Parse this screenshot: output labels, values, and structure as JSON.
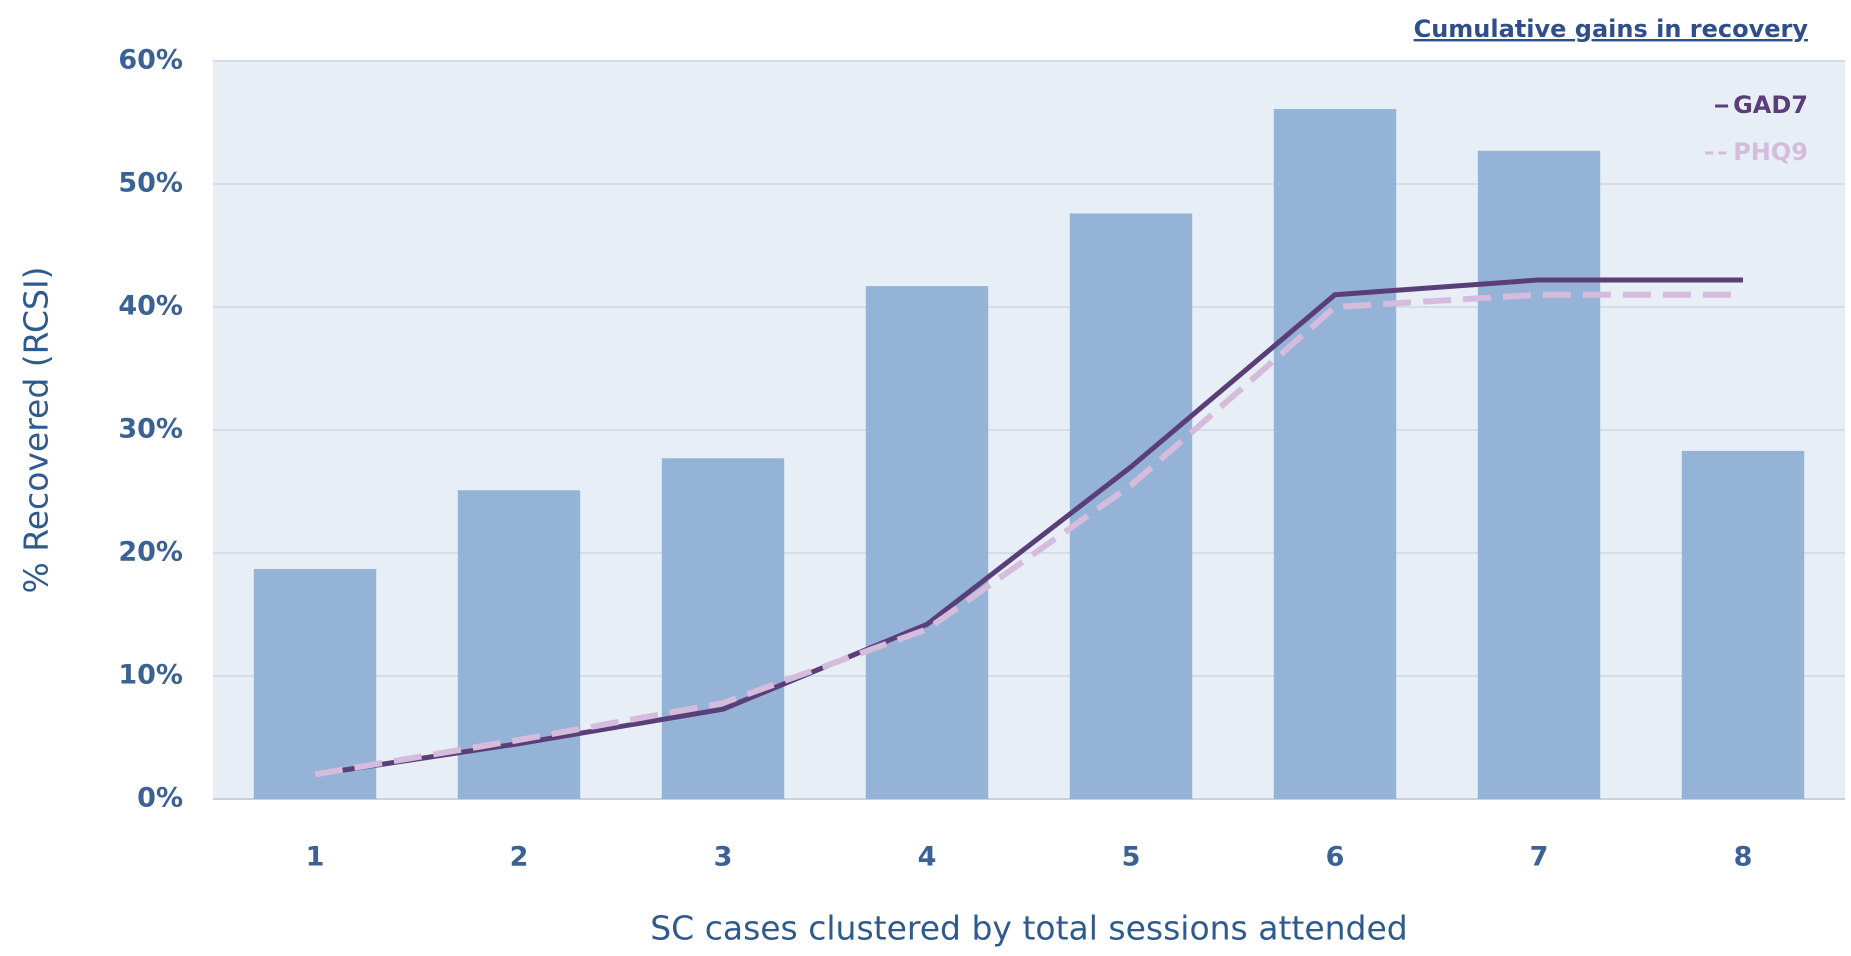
{
  "chart_data": {
    "type": "bar",
    "title": "Cumulative gains in recovery",
    "x_label": "SC cases clustered by total sessions attended",
    "y_label": "% Recovered (RCSI)",
    "categories": [
      "1",
      "2",
      "3",
      "4",
      "5",
      "6",
      "7",
      "8"
    ],
    "series": [
      {
        "type": "bar",
        "color": "#94b3d7",
        "values": [
          18.7,
          25.1,
          27.7,
          41.7,
          47.6,
          56.1,
          52.7,
          28.3
        ]
      },
      {
        "type": "line",
        "name": "GAD7",
        "color": "#5a3e78",
        "dashed": false,
        "values": [
          2,
          4.5,
          7.3,
          14.2,
          27,
          41,
          42.2,
          42.2
        ]
      },
      {
        "type": "line",
        "name": "PHQ9",
        "color": "#d6bcdc",
        "dashed": true,
        "values": [
          2,
          4.8,
          7.8,
          13.8,
          25.5,
          40,
          41,
          41
        ]
      }
    ],
    "ylim": [
      0,
      60
    ],
    "yticks": [
      {
        "value": 0,
        "label": "0%"
      },
      {
        "value": 10,
        "label": "10%"
      },
      {
        "value": 20,
        "label": "20%"
      },
      {
        "value": 30,
        "label": "30%"
      },
      {
        "value": 40,
        "label": "40%"
      },
      {
        "value": 50,
        "label": "50%"
      },
      {
        "value": 60,
        "label": "60%"
      }
    ],
    "grid": true,
    "legend_position": "top-right"
  }
}
